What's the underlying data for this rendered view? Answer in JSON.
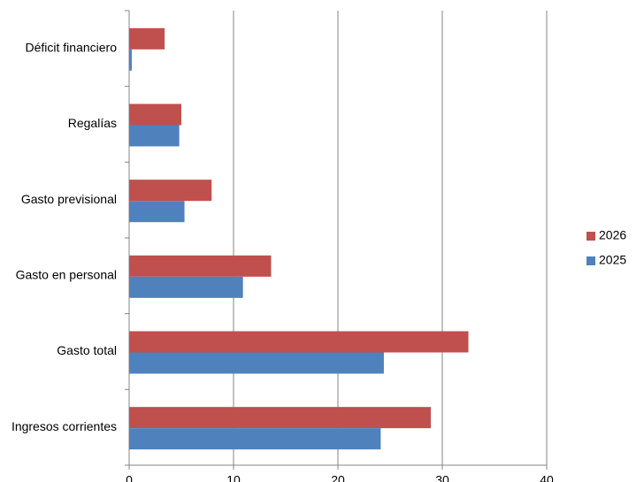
{
  "chart_data": {
    "type": "bar",
    "orientation": "horizontal",
    "categories": [
      "Déficit financiero",
      "Regalías",
      "Gasto previsional",
      "Gasto en personal",
      "Gasto total",
      "Ingresos corrientes"
    ],
    "series": [
      {
        "name": "2026",
        "color": "#c0504d",
        "values": [
          3.4,
          5.0,
          7.9,
          13.6,
          32.5,
          28.9
        ]
      },
      {
        "name": "2025",
        "color": "#4f81bd",
        "values": [
          0.25,
          4.8,
          5.3,
          10.9,
          24.4,
          24.1
        ]
      }
    ],
    "xlim": [
      0,
      40
    ],
    "xticks": [
      0,
      10,
      20,
      30,
      40
    ],
    "grid": true,
    "legend": "right"
  }
}
